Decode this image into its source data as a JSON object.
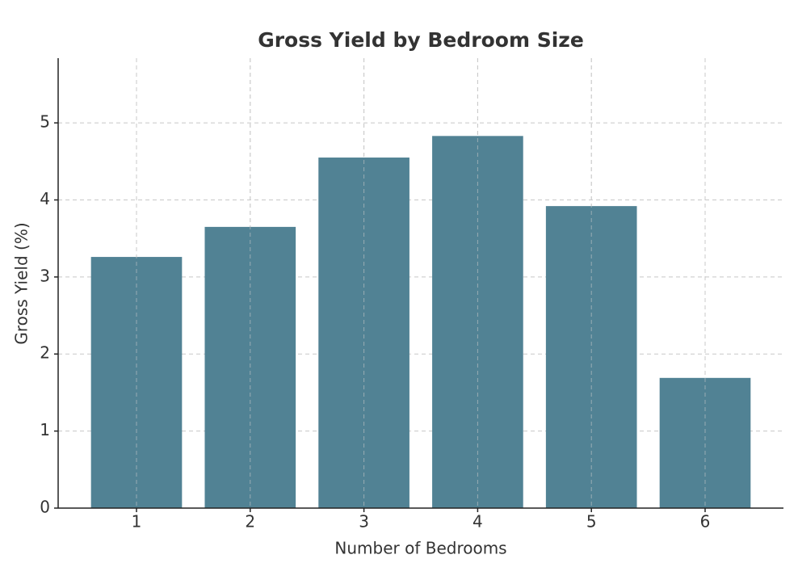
{
  "chart_data": {
    "type": "bar",
    "title": "Gross Yield by Bedroom Size",
    "x_label": "Number of Bedrooms",
    "y_label": "Gross Yield (%)",
    "categories": [
      "1",
      "2",
      "3",
      "4",
      "5",
      "6"
    ],
    "values": [
      3.26,
      3.65,
      4.55,
      4.83,
      3.92,
      1.69
    ],
    "color": "#518294",
    "ylim": [
      0,
      5.84
    ],
    "yticks": [
      0,
      1,
      2,
      3,
      4,
      5
    ],
    "grid": true
  }
}
